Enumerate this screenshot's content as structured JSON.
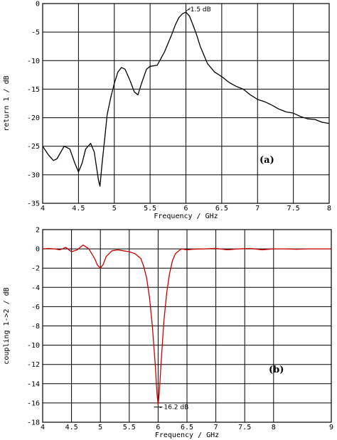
{
  "chart_data": [
    {
      "type": "line",
      "panel_label": "(a)",
      "xlabel": "Frequency / GHz",
      "ylabel": "return 1 / dB",
      "xlim": [
        4,
        8
      ],
      "ylim": [
        -35,
        0
      ],
      "xticks": [
        4,
        4.5,
        5,
        5.5,
        6,
        6.5,
        7,
        7.5,
        8
      ],
      "xtick_labels": [
        "4",
        "4.5",
        "5",
        "5.5",
        "6",
        "6.5",
        "7",
        "7.5",
        "8"
      ],
      "yticks": [
        0,
        -5,
        -10,
        -15,
        -20,
        -25,
        -30,
        -35
      ],
      "ytick_labels": [
        "0",
        "-5",
        "-10",
        "-15",
        "-20",
        "-25",
        "-30",
        "-35"
      ],
      "grid": true,
      "line_color": "#000000",
      "annotation": {
        "text": "-1.5 dB",
        "x": 6.0,
        "y": -1.5
      },
      "series": [
        {
          "x": [
            4.0,
            4.08,
            4.15,
            4.2,
            4.3,
            4.38,
            4.45,
            4.5,
            4.55,
            4.6,
            4.67,
            4.72,
            4.78,
            4.8,
            4.83,
            4.88,
            4.9,
            4.95,
            5.0,
            5.05,
            5.1,
            5.15,
            5.22,
            5.28,
            5.33,
            5.38,
            5.45,
            5.5,
            5.6,
            5.7,
            5.8,
            5.85,
            5.9,
            5.95,
            6.0,
            6.05,
            6.1,
            6.15,
            6.2,
            6.3,
            6.4,
            6.5,
            6.6,
            6.7,
            6.8,
            6.9,
            7.0,
            7.1,
            7.2,
            7.3,
            7.4,
            7.5,
            7.6,
            7.7,
            7.8,
            7.9,
            8.0
          ],
          "y": [
            -25.0,
            -26.5,
            -27.5,
            -27.2,
            -25.0,
            -25.5,
            -28.0,
            -29.5,
            -28.0,
            -25.5,
            -24.5,
            -26.0,
            -31.0,
            -32.0,
            -28.0,
            -22.0,
            -19.5,
            -16.5,
            -14.0,
            -12.0,
            -11.2,
            -11.5,
            -13.5,
            -15.5,
            -16.0,
            -14.0,
            -11.5,
            -11.0,
            -10.8,
            -8.5,
            -5.5,
            -3.8,
            -2.5,
            -1.8,
            -1.5,
            -2.2,
            -3.8,
            -5.5,
            -7.5,
            -10.5,
            -12.0,
            -12.8,
            -13.8,
            -14.5,
            -15.0,
            -16.0,
            -16.8,
            -17.2,
            -17.8,
            -18.5,
            -19.0,
            -19.2,
            -19.8,
            -20.2,
            -20.3,
            -20.8,
            -21.0
          ]
        }
      ]
    },
    {
      "type": "line",
      "panel_label": "(b)",
      "xlabel": "Frequency / GHz",
      "ylabel": "coupling 1->2 / dB",
      "xlim": [
        4,
        9
      ],
      "ylim": [
        -18,
        2
      ],
      "xticks": [
        4,
        4.5,
        5,
        5.5,
        6,
        6.5,
        7,
        7.5,
        8,
        9
      ],
      "xtick_labels": [
        "4",
        "4.5",
        "5",
        "5.5",
        "6",
        "6.5",
        "7",
        "7.5",
        "8",
        "9"
      ],
      "yticks": [
        2,
        0,
        -2,
        -4,
        -6,
        -8,
        -10,
        -12,
        -14,
        -16,
        -18
      ],
      "ytick_labels": [
        "2",
        "0",
        "-2",
        "-4",
        "-6",
        "-8",
        "-10",
        "-12",
        "-14",
        "-16",
        "-18"
      ],
      "grid": true,
      "line_color": "#cc0000",
      "annotation": {
        "text": "- 16.2 dB",
        "x": 6.0,
        "y": -16.2
      },
      "series": [
        {
          "x": [
            4.0,
            4.1,
            4.2,
            4.3,
            4.4,
            4.5,
            4.6,
            4.7,
            4.8,
            4.9,
            4.95,
            5.0,
            5.05,
            5.1,
            5.2,
            5.3,
            5.4,
            5.5,
            5.6,
            5.7,
            5.75,
            5.8,
            5.85,
            5.9,
            5.95,
            5.98,
            6.0,
            6.02,
            6.05,
            6.1,
            6.15,
            6.2,
            6.25,
            6.3,
            6.4,
            6.5,
            6.6,
            6.8,
            7.0,
            7.2,
            7.4,
            7.6,
            7.8,
            8.0,
            8.2,
            8.4,
            8.6,
            8.8,
            9.0
          ],
          "y": [
            0.0,
            0.05,
            0.0,
            -0.1,
            0.15,
            -0.3,
            -0.1,
            0.4,
            0.0,
            -1.0,
            -1.7,
            -2.0,
            -1.6,
            -0.8,
            -0.2,
            -0.1,
            -0.2,
            -0.3,
            -0.5,
            -1.0,
            -1.8,
            -3.0,
            -5.0,
            -8.0,
            -12.0,
            -15.0,
            -16.2,
            -15.0,
            -12.0,
            -7.5,
            -4.5,
            -2.5,
            -1.2,
            -0.5,
            0.0,
            -0.1,
            -0.05,
            0.0,
            0.05,
            -0.1,
            0.0,
            0.05,
            -0.1,
            0.0,
            0.0,
            -0.05,
            0.0,
            0.0,
            0.0
          ]
        }
      ]
    }
  ]
}
